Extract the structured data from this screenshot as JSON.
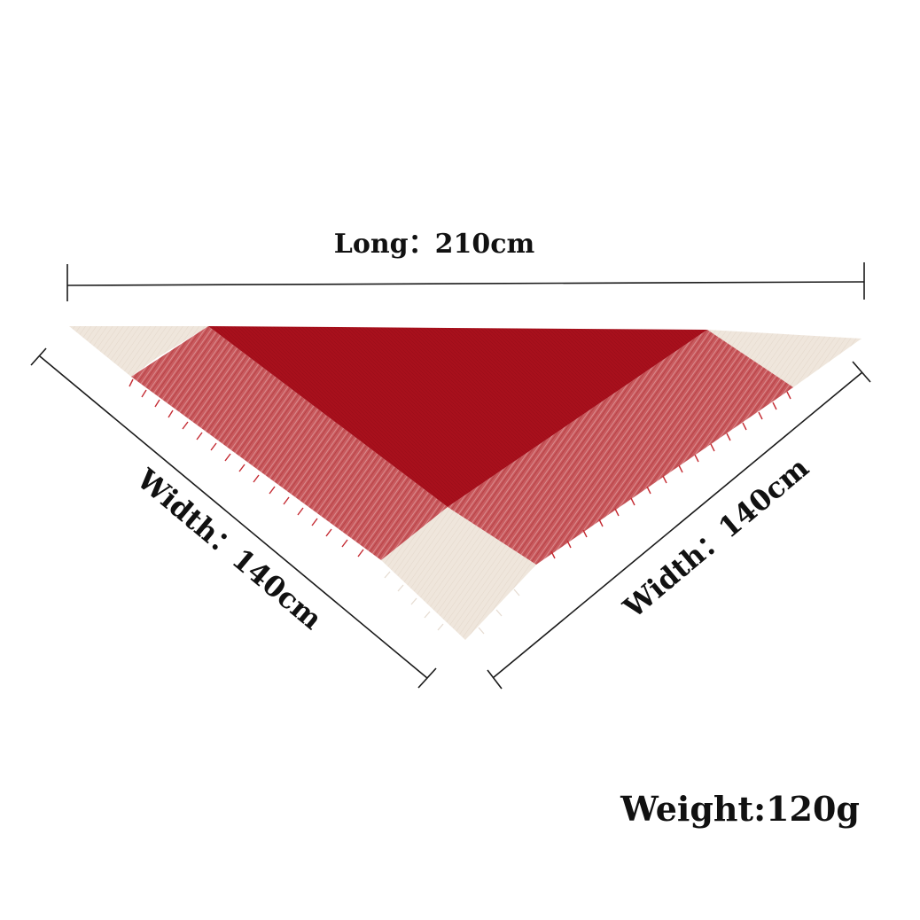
{
  "dimensions": {
    "long_label": "Long：210cm",
    "width_left_label": "Width：140cm",
    "width_right_label": "Width：140cm",
    "weight_label": "Weight:120g"
  },
  "scarf": {
    "colors": {
      "center": "#a8101c",
      "band": "#c8585c",
      "corner": "#eee4da",
      "fringe": "#c42a32",
      "line": "#1a1a1a"
    }
  }
}
